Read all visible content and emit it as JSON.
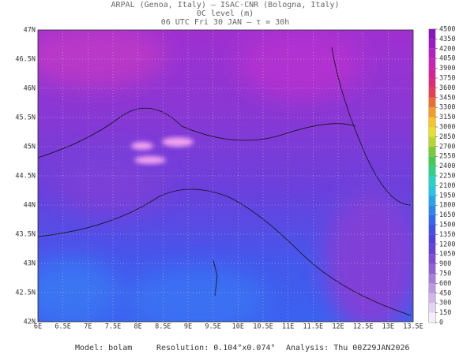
{
  "header": {
    "line1": "ARPAL (Genoa, Italy)  —  ISAC-CNR (Bologna, Italy)",
    "line2": "0C level (m)",
    "line3": "06 UTC Fri 30 JAN  —  τ = 30h"
  },
  "map": {
    "xticks": [
      "6E",
      "6.5E",
      "7E",
      "7.5E",
      "8E",
      "8.5E",
      "9E",
      "9.5E",
      "10E",
      "10.5E",
      "11E",
      "11.5E",
      "12E",
      "12.5E",
      "13E",
      "13.5E"
    ],
    "yticks": [
      "42N",
      "42.5N",
      "43N",
      "43.5N",
      "44N",
      "44.5N",
      "45N",
      "45.5N",
      "46N",
      "46.5N",
      "47N"
    ]
  },
  "colorbar": {
    "levels": [
      0,
      150,
      300,
      450,
      600,
      750,
      900,
      1050,
      1200,
      1350,
      1500,
      1650,
      1800,
      1950,
      2100,
      2250,
      2400,
      2550,
      2700,
      2850,
      3000,
      3150,
      3300,
      3450,
      3600,
      3750,
      3900,
      4050,
      4200,
      4350,
      4500
    ],
    "colors": [
      "#f4eefa",
      "#e4d2f2",
      "#d0b4ea",
      "#bc98e2",
      "#a87cdc",
      "#9060d6",
      "#7a4cd8",
      "#6440dc",
      "#5040e0",
      "#4250e8",
      "#3468f0",
      "#2888f0",
      "#20a8ee",
      "#20c8e4",
      "#20d8c0",
      "#28d488",
      "#40cc50",
      "#78cc30",
      "#b8d828",
      "#e8e020",
      "#f8c420",
      "#f89a20",
      "#f06a30",
      "#e83e50",
      "#e02a7a",
      "#d8209e",
      "#cc20b8",
      "#b81cc4",
      "#a018c8",
      "#8a14c4"
    ]
  },
  "footer": {
    "model": "Model: bolam",
    "resolution": "Resolution: 0.104°x0.074°",
    "analysis": "Analysis: Thu 00Z29JAN2026"
  }
}
